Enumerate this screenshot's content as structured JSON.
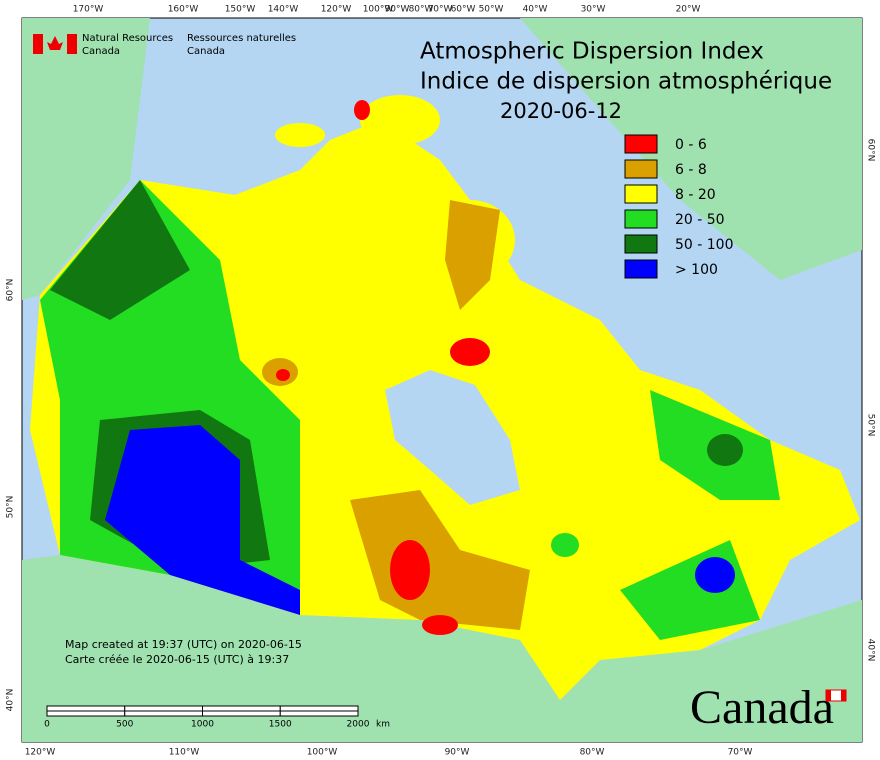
{
  "header": {
    "agency_en": "Natural Resources",
    "agency_en_country": "Canada",
    "agency_fr": "Ressources naturelles",
    "agency_fr_country": "Canada"
  },
  "title": {
    "line1": "Atmospheric Dispersion Index",
    "line2": "Indice de dispersion atmosphérique",
    "date": "2020-06-12"
  },
  "legend": [
    {
      "label": "0 - 6",
      "color": "#ff0000"
    },
    {
      "label": "6 - 8",
      "color": "#d9a000"
    },
    {
      "label": "8 - 20",
      "color": "#ffff00"
    },
    {
      "label": "20 - 50",
      "color": "#22dd22"
    },
    {
      "label": "50 - 100",
      "color": "#117711"
    },
    {
      "label": "> 100",
      "color": "#0000ff"
    }
  ],
  "top_longitudes": [
    "170°W",
    "160°W",
    "150°W",
    "140°W",
    "120°W",
    "100°W",
    "90°W",
    "80°W",
    "70°W",
    "60°W",
    "50°W",
    "40°W",
    "30°W",
    "20°W"
  ],
  "bottom_longitudes": [
    "120°W",
    "110°W",
    "100°W",
    "90°W",
    "80°W",
    "70°W"
  ],
  "left_latitudes": [
    "60°N",
    "50°N",
    "40°N"
  ],
  "right_latitudes": [
    "60°N",
    "50°N",
    "40°N"
  ],
  "scale": {
    "ticks": [
      0,
      500,
      1000,
      1500,
      2000
    ],
    "unit": "km"
  },
  "notes": [
    "Map created at 19:37 (UTC) on 2020-06-15",
    "Carte créée le 2020-06-15 (UTC) à 19:37"
  ],
  "wordmark": "Canada"
}
